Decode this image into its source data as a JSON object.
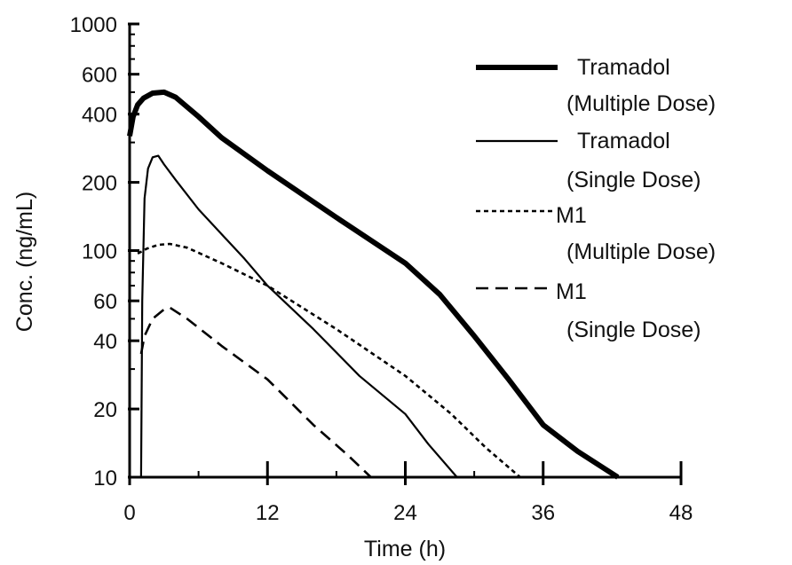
{
  "chart_data": {
    "type": "line",
    "xlabel": "Time (h)",
    "ylabel": "Conc. (ng/mL)",
    "xlim": [
      0,
      48
    ],
    "ylim": [
      10,
      1000
    ],
    "yscale": "log",
    "grid": false,
    "legend_placement": "top-right",
    "x_ticks": [
      0,
      12,
      24,
      36,
      48
    ],
    "x_tick_labels": [
      "0",
      "12",
      "24",
      "36",
      "48"
    ],
    "y_ticks": [
      10,
      20,
      40,
      60,
      100,
      200,
      400,
      600,
      1000
    ],
    "y_tick_labels": [
      "10",
      "20",
      "40",
      "60",
      "100",
      "200",
      "400",
      "600",
      "1000"
    ],
    "series": [
      {
        "name": "Tramadol (Multiple Dose)",
        "legend_lines": [
          "Tramadol",
          "(Multiple Dose)"
        ],
        "style": "solid-thick",
        "points": [
          [
            0,
            320
          ],
          [
            0.3,
            390
          ],
          [
            0.7,
            440
          ],
          [
            1.2,
            470
          ],
          [
            2,
            495
          ],
          [
            3,
            500
          ],
          [
            4,
            475
          ],
          [
            6,
            390
          ],
          [
            8,
            315
          ],
          [
            12,
            225
          ],
          [
            18,
            140
          ],
          [
            24,
            88
          ],
          [
            27,
            64
          ],
          [
            30,
            42
          ],
          [
            33,
            27
          ],
          [
            36,
            17
          ],
          [
            39,
            13
          ],
          [
            42.5,
            10
          ]
        ]
      },
      {
        "name": "Tramadol (Single Dose)",
        "legend_lines": [
          "Tramadol",
          "(Single Dose)"
        ],
        "style": "solid-thin",
        "points": [
          [
            1,
            10
          ],
          [
            1.1,
            60
          ],
          [
            1.3,
            170
          ],
          [
            1.6,
            230
          ],
          [
            2,
            258
          ],
          [
            2.5,
            262
          ],
          [
            3,
            240
          ],
          [
            4,
            205
          ],
          [
            6,
            152
          ],
          [
            10,
            92
          ],
          [
            12,
            70
          ],
          [
            16,
            45
          ],
          [
            20,
            28
          ],
          [
            24,
            19
          ],
          [
            26,
            14
          ],
          [
            28.5,
            10
          ]
        ]
      },
      {
        "name": "M1 (Multiple Dose)",
        "legend_lines": [
          "M1",
          "(Multiple Dose)"
        ],
        "style": "dotted",
        "points": [
          [
            0.7,
            97
          ],
          [
            1.5,
            102
          ],
          [
            2.5,
            106
          ],
          [
            3.5,
            107
          ],
          [
            5,
            103
          ],
          [
            8,
            88
          ],
          [
            12,
            70
          ],
          [
            18,
            45
          ],
          [
            24,
            28
          ],
          [
            28,
            19
          ],
          [
            31,
            13.5
          ],
          [
            34,
            10
          ]
        ]
      },
      {
        "name": "M1 (Single Dose)",
        "legend_lines": [
          "M1",
          "(Single Dose)"
        ],
        "style": "dashed",
        "points": [
          [
            1,
            35
          ],
          [
            1.3,
            42
          ],
          [
            2,
            50
          ],
          [
            3,
            55
          ],
          [
            3.5,
            56
          ],
          [
            5,
            50
          ],
          [
            8,
            38
          ],
          [
            12,
            27
          ],
          [
            16,
            17
          ],
          [
            19,
            12.5
          ],
          [
            21,
            10
          ]
        ]
      }
    ]
  }
}
